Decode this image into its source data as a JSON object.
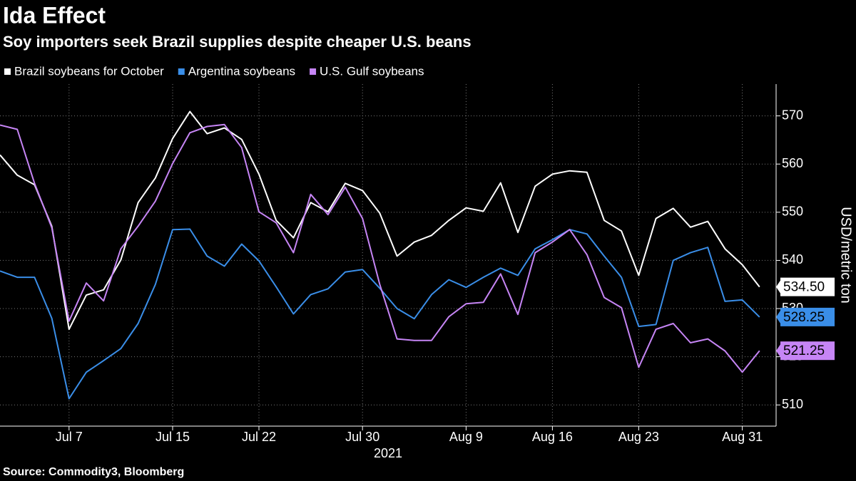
{
  "chart_data": {
    "type": "line",
    "title": "Ida Effect",
    "subtitle": "Soy importers seek Brazil supplies despite cheaper U.S. beans",
    "source": "Source: Commodity3, Bloomberg",
    "x_label": "2021",
    "y_label": "USD/metric ton",
    "categories": [
      null,
      null,
      null,
      null,
      "Jul 7",
      null,
      null,
      null,
      null,
      null,
      "Jul 15",
      null,
      null,
      null,
      null,
      "Jul 22",
      null,
      null,
      null,
      null,
      null,
      "Jul 30",
      null,
      null,
      null,
      null,
      null,
      "Aug 9",
      null,
      null,
      null,
      null,
      "Aug 16",
      null,
      null,
      null,
      null,
      "Aug 23",
      null,
      null,
      null,
      null,
      null,
      "Aug 31",
      null
    ],
    "ylim": [
      505.6,
      576.6
    ],
    "yticks": [
      510,
      520,
      530,
      540,
      550,
      560,
      570
    ],
    "grid": true,
    "legend": "top-left",
    "series": [
      {
        "name": "Brazil soybeans for October",
        "color": "#ffffff",
        "values": [
          561.9,
          557.7,
          555.7,
          547.1,
          525.7,
          532.8,
          533.9,
          540.1,
          552.0,
          557.1,
          565.3,
          570.9,
          566.3,
          567.5,
          565.1,
          557.9,
          548.3,
          544.7,
          552.0,
          550.1,
          556.0,
          554.5,
          549.8,
          540.9,
          543.8,
          545.2,
          548.3,
          550.9,
          550.2,
          556.1,
          545.8,
          555.4,
          557.9,
          558.6,
          558.3,
          548.3,
          546.1,
          536.9,
          548.7,
          550.8,
          546.9,
          548.1,
          542.4,
          539.1,
          534.5
        ],
        "value_labels": [
          null,
          null,
          null,
          null,
          null,
          null,
          null,
          null,
          null,
          null,
          null,
          null,
          null,
          null,
          null,
          null,
          null,
          null,
          null,
          null,
          null,
          null,
          null,
          null,
          null,
          null,
          null,
          null,
          null,
          null,
          null,
          null,
          null,
          null,
          null,
          null,
          null,
          null,
          null,
          null,
          null,
          null,
          null,
          null,
          "534.50"
        ]
      },
      {
        "name": "Argentina soybeans",
        "color": "#3a8ee8",
        "values": [
          537.8,
          536.5,
          536.5,
          528.0,
          511.3,
          516.8,
          519.2,
          521.7,
          526.9,
          535.0,
          546.4,
          546.5,
          540.9,
          538.8,
          543.4,
          539.9,
          534.5,
          528.9,
          532.9,
          534.1,
          537.6,
          538.1,
          534.2,
          530.0,
          527.9,
          532.9,
          536.0,
          534.4,
          536.5,
          538.4,
          536.9,
          542.4,
          544.3,
          546.4,
          545.5,
          540.9,
          536.5,
          526.3,
          526.7,
          540.0,
          541.6,
          542.7,
          531.5,
          531.8,
          528.25
        ],
        "value_labels": [
          null,
          null,
          null,
          null,
          null,
          null,
          null,
          null,
          null,
          null,
          null,
          null,
          null,
          null,
          null,
          null,
          null,
          null,
          null,
          null,
          null,
          null,
          null,
          null,
          null,
          null,
          null,
          null,
          null,
          null,
          null,
          null,
          null,
          null,
          null,
          null,
          null,
          null,
          null,
          null,
          null,
          null,
          null,
          null,
          "528.25"
        ]
      },
      {
        "name": "U.S. Gulf soybeans",
        "color": "#c685f5",
        "values": [
          568.1,
          567.2,
          556.0,
          546.8,
          527.4,
          535.3,
          531.6,
          542.4,
          547.1,
          552.3,
          560.1,
          566.5,
          567.8,
          568.2,
          563.4,
          550.1,
          547.8,
          541.6,
          553.7,
          549.5,
          555.2,
          548.7,
          535.0,
          523.7,
          523.4,
          523.4,
          528.3,
          531.0,
          531.3,
          537.2,
          528.8,
          541.6,
          543.8,
          546.4,
          541.2,
          532.3,
          530.2,
          517.8,
          525.7,
          526.9,
          522.9,
          523.7,
          521.2,
          516.8,
          521.25
        ],
        "value_labels": [
          null,
          null,
          null,
          null,
          null,
          null,
          null,
          null,
          null,
          null,
          null,
          null,
          null,
          null,
          null,
          null,
          null,
          null,
          null,
          null,
          null,
          null,
          null,
          null,
          null,
          null,
          null,
          null,
          null,
          null,
          null,
          null,
          null,
          null,
          null,
          null,
          null,
          null,
          null,
          null,
          null,
          null,
          null,
          null,
          "521.25"
        ]
      }
    ]
  }
}
